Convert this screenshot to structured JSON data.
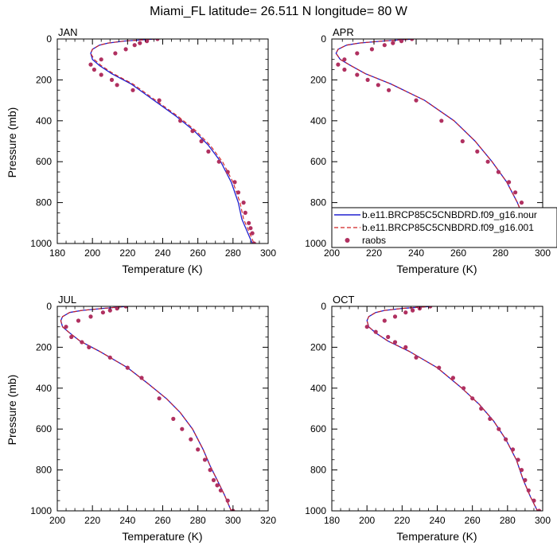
{
  "title": "Miami_FL  latitude= 26.511 N longitude= 80 W",
  "legend": {
    "model_line": "b.e11.BRCP85C5CNBDRD.f09_g16.nour",
    "model_dash": "b.e11.BRCP85C5CNBDRD.f09_g16.001",
    "raobs": "raobs"
  },
  "colors": {
    "model_line": "#2020d0",
    "model_dash": "#d02020",
    "raobs": "#b03060"
  },
  "chart_data": [
    {
      "type": "line",
      "panel": "JAN",
      "xlabel": "Temperature (K)",
      "ylabel": "Pressure (mb)",
      "xlim": [
        180,
        300
      ],
      "ylim": [
        1000,
        0
      ],
      "xticks": [
        180,
        200,
        220,
        240,
        260,
        280,
        300
      ],
      "yticks": [
        0,
        200,
        400,
        600,
        800,
        1000
      ],
      "series": [
        {
          "name": "b.e11.BRCP85C5CNBDRD.f09_g16.nour",
          "style": "solid",
          "x": [
            236,
            218,
            209,
            204,
            200,
            199,
            200,
            204,
            211,
            222,
            235,
            248,
            258,
            266,
            273,
            279,
            283,
            285,
            288,
            291
          ],
          "y": [
            0,
            10,
            20,
            30,
            50,
            70,
            100,
            130,
            170,
            220,
            300,
            380,
            450,
            520,
            600,
            700,
            800,
            880,
            940,
            1000
          ]
        },
        {
          "name": "b.e11.BRCP85C5CNBDRD.f09_g16.001",
          "style": "dashed",
          "x": [
            236,
            218,
            209,
            204,
            200,
            199,
            201,
            205,
            212,
            223,
            236,
            249,
            259,
            267,
            274,
            280,
            284,
            286,
            289,
            292
          ],
          "y": [
            0,
            10,
            20,
            30,
            50,
            70,
            100,
            130,
            170,
            220,
            300,
            380,
            450,
            520,
            600,
            700,
            800,
            880,
            940,
            1000
          ]
        },
        {
          "name": "raobs",
          "style": "markers",
          "x": [
            237,
            231,
            227,
            224,
            219,
            213,
            205,
            199,
            201,
            205,
            211,
            214,
            223,
            238,
            250,
            257,
            262,
            266,
            272,
            277,
            281,
            283,
            286,
            287,
            289,
            290,
            291,
            292
          ],
          "y": [
            0,
            10,
            20,
            30,
            50,
            70,
            100,
            125,
            150,
            175,
            200,
            225,
            250,
            300,
            400,
            450,
            500,
            550,
            600,
            650,
            700,
            750,
            800,
            850,
            900,
            925,
            950,
            1000
          ]
        }
      ]
    },
    {
      "type": "line",
      "panel": "APR",
      "xlabel": "Temperature (K)",
      "ylabel": "",
      "xlim": [
        200,
        300
      ],
      "ylim": [
        1000,
        0
      ],
      "xticks": [
        200,
        220,
        240,
        260,
        280,
        300
      ],
      "yticks": [
        0,
        200,
        400,
        600,
        800,
        1000
      ],
      "series": [
        {
          "name": "b.e11.BRCP85C5CNBDRD.f09_g16.nour",
          "style": "solid",
          "x": [
            239,
            224,
            213,
            207,
            203,
            202,
            204,
            209,
            216,
            228,
            244,
            258,
            268,
            276,
            283,
            288,
            292,
            295
          ],
          "y": [
            0,
            10,
            20,
            30,
            50,
            70,
            100,
            130,
            170,
            220,
            300,
            400,
            500,
            600,
            700,
            800,
            900,
            1000
          ]
        },
        {
          "name": "b.e11.BRCP85C5CNBDRD.f09_g16.001",
          "style": "dashed",
          "x": [
            239,
            224,
            213,
            207,
            203,
            202,
            204,
            209,
            216,
            228,
            244,
            258,
            268,
            276,
            283,
            288,
            292,
            295
          ],
          "y": [
            0,
            10,
            20,
            30,
            50,
            70,
            100,
            130,
            170,
            220,
            300,
            400,
            500,
            600,
            700,
            800,
            900,
            1000
          ]
        },
        {
          "name": "raobs",
          "style": "markers",
          "x": [
            238,
            233,
            229,
            225,
            219,
            212,
            206,
            203,
            206,
            212,
            217,
            222,
            227,
            240,
            252,
            262,
            269,
            274,
            279,
            284,
            287,
            290,
            292,
            293,
            295,
            296
          ],
          "y": [
            0,
            10,
            20,
            30,
            50,
            70,
            100,
            125,
            150,
            175,
            200,
            225,
            250,
            300,
            400,
            500,
            550,
            600,
            650,
            700,
            750,
            800,
            850,
            900,
            950,
            1000
          ]
        }
      ]
    },
    {
      "type": "line",
      "panel": "JUL",
      "xlabel": "Temperature (K)",
      "ylabel": "Pressure (mb)",
      "xlim": [
        200,
        320
      ],
      "ylim": [
        1000,
        0
      ],
      "xticks": [
        200,
        220,
        240,
        260,
        280,
        300,
        320
      ],
      "yticks": [
        0,
        200,
        400,
        600,
        800,
        1000
      ],
      "series": [
        {
          "name": "b.e11.BRCP85C5CNBDRD.f09_g16.nour",
          "style": "solid",
          "x": [
            240,
            226,
            214,
            207,
            203,
            202,
            203,
            207,
            213,
            224,
            240,
            252,
            262,
            270,
            277,
            283,
            287,
            291,
            295,
            299
          ],
          "y": [
            0,
            10,
            20,
            30,
            50,
            70,
            100,
            130,
            170,
            220,
            300,
            380,
            450,
            520,
            600,
            700,
            780,
            850,
            920,
            1000
          ]
        },
        {
          "name": "b.e11.BRCP85C5CNBDRD.f09_g16.001",
          "style": "dashed",
          "x": [
            240,
            226,
            214,
            207,
            203,
            202,
            203,
            207,
            213,
            224,
            240,
            252,
            262,
            270,
            277,
            283,
            287,
            291,
            295,
            299
          ],
          "y": [
            0,
            10,
            20,
            30,
            50,
            70,
            100,
            130,
            170,
            220,
            300,
            380,
            450,
            520,
            600,
            700,
            780,
            850,
            920,
            1000
          ]
        },
        {
          "name": "raobs",
          "style": "markers",
          "x": [
            239,
            234,
            230,
            226,
            219,
            212,
            205,
            208,
            214,
            218,
            230,
            240,
            248,
            258,
            266,
            271,
            276,
            280,
            284,
            287,
            289,
            291,
            293,
            297,
            300
          ],
          "y": [
            0,
            10,
            20,
            30,
            50,
            70,
            100,
            150,
            175,
            200,
            250,
            300,
            350,
            450,
            550,
            600,
            650,
            700,
            750,
            800,
            850,
            875,
            900,
            950,
            1000
          ]
        }
      ]
    },
    {
      "type": "line",
      "panel": "OCT",
      "xlabel": "Temperature (K)",
      "ylabel": "",
      "xlim": [
        180,
        300
      ],
      "ylim": [
        1000,
        0
      ],
      "xticks": [
        180,
        200,
        220,
        240,
        260,
        280,
        300
      ],
      "yticks": [
        0,
        200,
        400,
        600,
        800,
        1000
      ],
      "series": [
        {
          "name": "b.e11.BRCP85C5CNBDRD.f09_g16.nour",
          "style": "solid",
          "x": [
            237,
            220,
            210,
            205,
            201,
            200,
            201,
            205,
            212,
            224,
            240,
            254,
            264,
            272,
            279,
            285,
            289,
            293,
            297
          ],
          "y": [
            0,
            10,
            20,
            30,
            50,
            70,
            100,
            130,
            170,
            220,
            300,
            400,
            480,
            560,
            650,
            750,
            850,
            930,
            1000
          ]
        },
        {
          "name": "b.e11.BRCP85C5CNBDRD.f09_g16.001",
          "style": "dashed",
          "x": [
            237,
            220,
            210,
            205,
            201,
            200,
            201,
            205,
            212,
            224,
            240,
            254,
            264,
            272,
            279,
            285,
            289,
            293,
            297
          ],
          "y": [
            0,
            10,
            20,
            30,
            50,
            70,
            100,
            130,
            170,
            220,
            300,
            400,
            480,
            560,
            650,
            750,
            850,
            930,
            1000
          ]
        },
        {
          "name": "raobs",
          "style": "markers",
          "x": [
            236,
            230,
            226,
            222,
            216,
            210,
            200,
            205,
            212,
            216,
            222,
            228,
            241,
            249,
            255,
            260,
            265,
            270,
            275,
            279,
            283,
            286,
            288,
            290,
            292,
            295,
            298
          ],
          "y": [
            0,
            10,
            20,
            30,
            50,
            70,
            100,
            125,
            150,
            175,
            200,
            250,
            300,
            350,
            400,
            450,
            500,
            550,
            600,
            650,
            700,
            750,
            800,
            850,
            900,
            950,
            1000
          ]
        }
      ]
    }
  ]
}
